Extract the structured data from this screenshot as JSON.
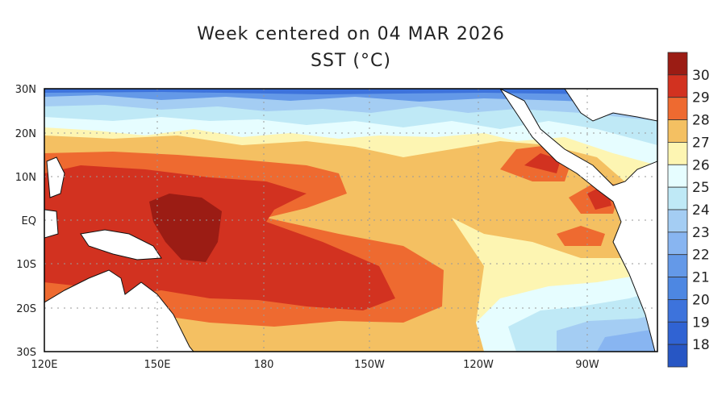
{
  "title": "Week centered on 04 MAR 2026",
  "subtitle": "SST (°C)",
  "chart_data": {
    "type": "heatmap",
    "variable": "Sea surface temperature",
    "units": "°C",
    "lon_range": [
      "120E",
      "70W"
    ],
    "lat_range": [
      "30S",
      "30N"
    ],
    "x_ticks": [
      "120E",
      "150E",
      "180",
      "150W",
      "120W",
      "90W"
    ],
    "y_ticks": [
      "30N",
      "20N",
      "10N",
      "EQ",
      "10S",
      "20S",
      "30S"
    ],
    "colorbar": {
      "labels": [
        "30",
        "29",
        "28",
        "27",
        "26",
        "25",
        "24",
        "23",
        "22",
        "21",
        "20",
        "19",
        "18"
      ],
      "colors": [
        "#9b1c14",
        "#d23220",
        "#ee6a30",
        "#f4c062",
        "#fdf5b2",
        "#e6fdff",
        "#bfe9f6",
        "#a4cdf3",
        "#88b5f1",
        "#6499e8",
        "#4d87e2",
        "#3d73dc",
        "#3063d3",
        "#2756c4"
      ]
    },
    "features": [
      "Western Pacific warm pool above 29°C",
      "Core above 30°C near 160E-170E, 0-10S",
      "South Pacific convergence tongue above 29°C to ~150W 20S",
      "Cooler water below 24°C in southeast and north of 20N"
    ]
  }
}
